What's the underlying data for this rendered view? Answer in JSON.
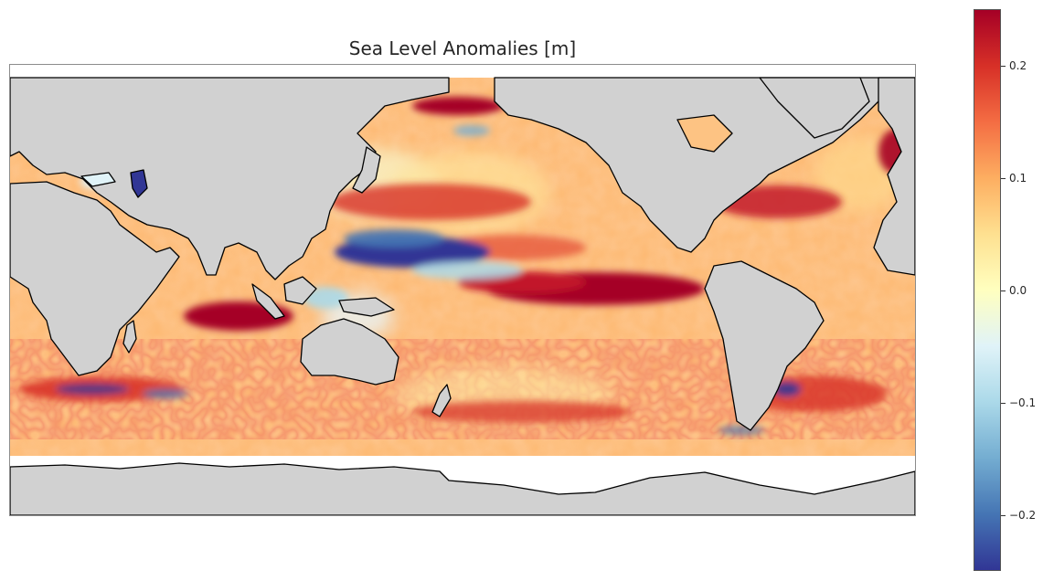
{
  "title": "Sea Level Anomalies [m]",
  "colorbar": {
    "min": -0.25,
    "max": 0.25,
    "colors": [
      "#313695",
      "#4575b4",
      "#74add1",
      "#abd9e9",
      "#e0f3f8",
      "#ffffbf",
      "#fee090",
      "#fdae61",
      "#f46d43",
      "#d73027",
      "#a50026"
    ],
    "ticks": [
      {
        "value": 0.2,
        "label": "0.2"
      },
      {
        "value": 0.1,
        "label": "0.1"
      },
      {
        "value": 0.0,
        "label": "0.0"
      },
      {
        "value": -0.1,
        "label": "−0.1"
      },
      {
        "value": -0.2,
        "label": "−0.2"
      }
    ]
  },
  "map": {
    "land_color": "#d1d1d1",
    "coastline_color": "#000000",
    "ocean_base_color": "#fdb46b"
  }
}
